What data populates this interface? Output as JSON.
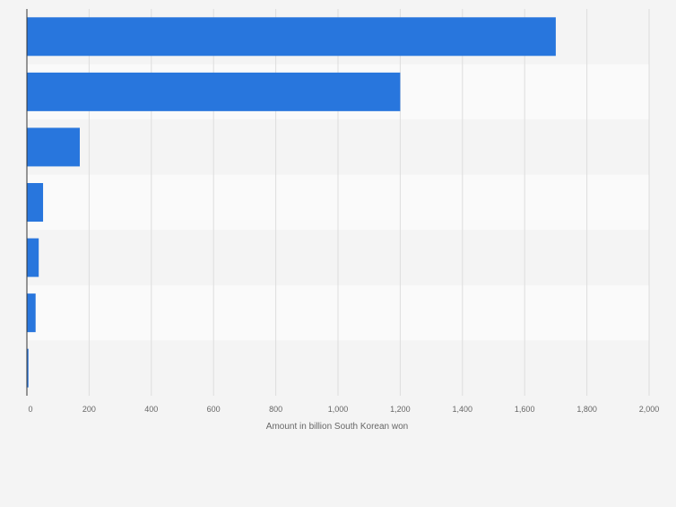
{
  "chart_data": {
    "type": "bar",
    "orientation": "horizontal",
    "categories": [
      "",
      "",
      "",
      "",
      "",
      "",
      ""
    ],
    "values": [
      1700,
      1200,
      170,
      52,
      38,
      28,
      5
    ],
    "title": "",
    "xlabel": "Amount in billion South Korean won",
    "ylabel": "",
    "xlim": [
      0,
      2000
    ],
    "xticks": [
      0,
      200,
      400,
      600,
      800,
      1000,
      1200,
      1400,
      1600,
      1800,
      2000
    ],
    "xtick_labels": [
      "0",
      "200",
      "400",
      "600",
      "800",
      "1,000",
      "1,200",
      "1,400",
      "1,600",
      "1,800",
      "2,000"
    ],
    "grid": true,
    "legend": "none"
  },
  "colors": {
    "bar": "#2876dd",
    "background": "#f4f4f4",
    "band_light": "#fafafa",
    "band_dark": "#f4f4f4",
    "grid": "#dddddd",
    "axis": "#333333",
    "tick_text": "#666666"
  }
}
